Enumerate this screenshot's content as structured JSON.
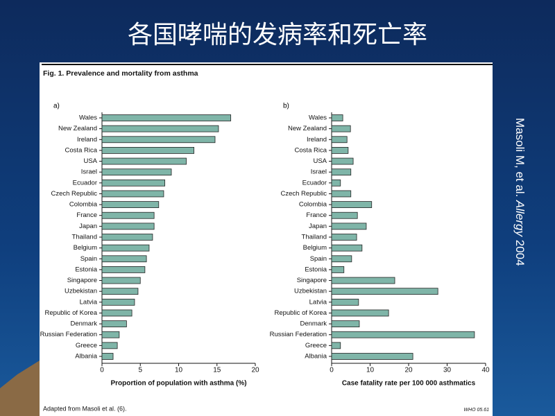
{
  "slide": {
    "title": "各国哮喘的发病率和死亡率",
    "side_note": {
      "authors": "Masoli M, et al. ",
      "journal": "Allergy",
      "year": " 2004"
    }
  },
  "figure": {
    "title": "Fig. 1. Prevalence and mortality from asthma",
    "source": "Adapted from Masoli et al. (6).",
    "code": "WHO 05.61"
  },
  "chart_data": [
    {
      "type": "bar",
      "orientation": "horizontal",
      "panel_label": "a)",
      "x_label": "Proportion of population with asthma (%)",
      "categories": [
        "Wales",
        "New Zealand",
        "Ireland",
        "Costa Rica",
        "USA",
        "Israel",
        "Ecuador",
        "Czech Republic",
        "Colombia",
        "France",
        "Japan",
        "Thailand",
        "Belgium",
        "Spain",
        "Estonia",
        "Singapore",
        "Uzbekistan",
        "Latvia",
        "Republic of Korea",
        "Denmark",
        "Russian Federation",
        "Greece",
        "Albania"
      ],
      "values": [
        16.8,
        15.2,
        14.75,
        12.0,
        11.0,
        9.05,
        8.2,
        8.05,
        7.4,
        6.8,
        6.8,
        6.6,
        6.15,
        5.8,
        5.6,
        5.0,
        4.7,
        4.25,
        3.9,
        3.2,
        2.25,
        2.0,
        1.45
      ],
      "color": "#7fb5a8",
      "xlim": [
        0,
        20
      ],
      "xticks": [
        0,
        5,
        10,
        15,
        20
      ]
    },
    {
      "type": "bar",
      "orientation": "horizontal",
      "panel_label": "b)",
      "x_label": "Case fatality rate per 100 000 asthmatics",
      "categories": [
        "Wales",
        "New Zealand",
        "Ireland",
        "Costa Rica",
        "USA",
        "Israel",
        "Ecuador",
        "Czech Republic",
        "Colombia",
        "France",
        "Japan",
        "Thailand",
        "Belgium",
        "Spain",
        "Estonia",
        "Singapore",
        "Uzbekistan",
        "Latvia",
        "Republic of Korea",
        "Denmark",
        "Russian Federation",
        "Greece",
        "Albania"
      ],
      "values": [
        2.9,
        4.9,
        4.0,
        4.3,
        5.6,
        5.0,
        2.3,
        5.0,
        10.4,
        6.7,
        9.0,
        6.5,
        7.9,
        5.2,
        3.2,
        16.4,
        27.6,
        7.0,
        14.8,
        7.2,
        37.1,
        2.3,
        21.1
      ],
      "color": "#7fb5a8",
      "xlim": [
        0,
        40
      ],
      "xticks": [
        0,
        10,
        20,
        30,
        40
      ]
    }
  ]
}
